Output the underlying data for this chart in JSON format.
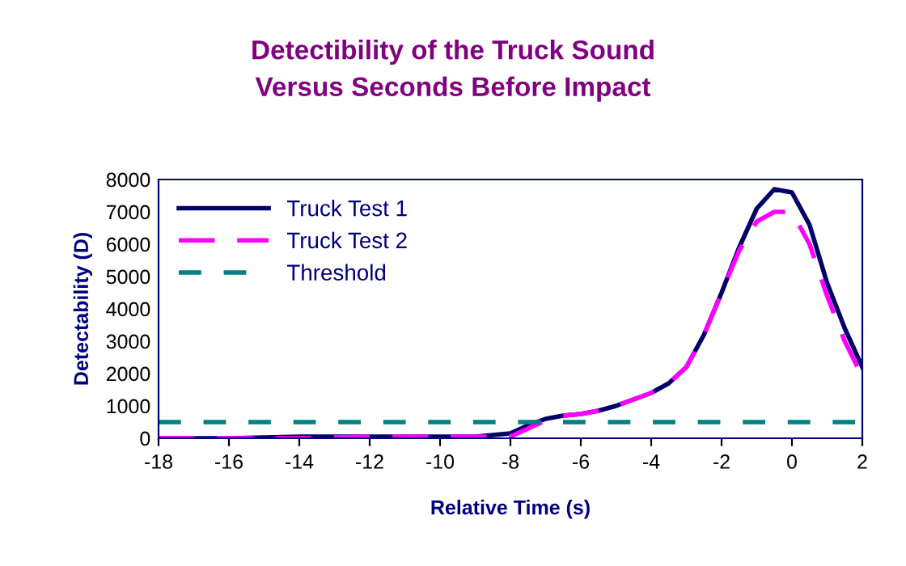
{
  "chart_data": {
    "type": "line",
    "title": "Detectibility of the Truck Sound\nVersus Seconds Before Impact",
    "xlabel": "Relative Time (s)",
    "ylabel": "Detectability (D)",
    "x": [
      -18,
      -16,
      -14,
      -12,
      -10,
      -9,
      -8.5,
      -8,
      -7.5,
      -7,
      -6.5,
      -6,
      -5.5,
      -5,
      -4.5,
      -4,
      -3.5,
      -3,
      -2.5,
      -2,
      -1.5,
      -1,
      -0.5,
      0,
      0.5,
      1,
      1.5,
      2
    ],
    "series": [
      {
        "name": "Truck Test 1",
        "color": "#000066",
        "line_style": "solid",
        "values": [
          0,
          0,
          50,
          50,
          50,
          50,
          100,
          150,
          400,
          600,
          700,
          750,
          850,
          1000,
          1200,
          1400,
          1700,
          2200,
          3200,
          4500,
          5900,
          7100,
          7700,
          7600,
          6600,
          4800,
          3400,
          2200
        ]
      },
      {
        "name": "Truck Test 2",
        "color": "#ff00ff",
        "line_style": "dashed",
        "values": [
          0,
          0,
          0,
          50,
          50,
          50,
          50,
          50,
          300,
          550,
          700,
          750,
          850,
          1000,
          1200,
          1400,
          1700,
          2200,
          3200,
          4500,
          5800,
          6700,
          7000,
          7000,
          6000,
          4400,
          3000,
          1900
        ]
      }
    ],
    "ref_lines": [
      {
        "axis": "y",
        "value": 500,
        "label": "Threshold",
        "color": "#008080",
        "line_style": "dashed"
      }
    ],
    "xlim": [
      -18,
      2
    ],
    "xticks": [
      -18,
      -16,
      -14,
      -12,
      -10,
      -8,
      -6,
      -4,
      -2,
      0,
      2
    ],
    "ylim": [
      0,
      8000
    ],
    "yticks": [
      0,
      1000,
      2000,
      3000,
      4000,
      5000,
      6000,
      7000,
      8000
    ],
    "grid": false,
    "legend": "top left",
    "marker": "none"
  }
}
